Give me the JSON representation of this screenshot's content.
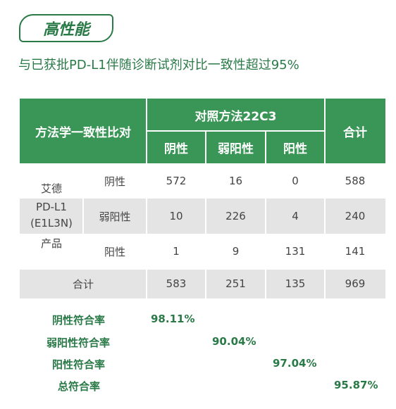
{
  "badge": {
    "label": "高性能"
  },
  "subtitle": "与已获批PD-L1伴随诊断试剂对比一致性超过95%",
  "table": {
    "corner": "方法学一致性比对",
    "reference_group": "对照方法22C3",
    "ref_cols": [
      "阴性",
      "弱阳性",
      "阳性"
    ],
    "total_col": "合计",
    "test_product": [
      "艾德",
      "PD-L1",
      "(E1L3N)",
      "产品"
    ],
    "rows": [
      {
        "label": "阴性",
        "values": [
          "572",
          "16",
          "0",
          "588"
        ]
      },
      {
        "label": "弱阳性",
        "values": [
          "10",
          "226",
          "4",
          "240"
        ]
      },
      {
        "label": "阳性",
        "values": [
          "1",
          "9",
          "131",
          "141"
        ]
      }
    ],
    "total_row": {
      "label": "合计",
      "values": [
        "583",
        "251",
        "135",
        "969"
      ]
    }
  },
  "rates": [
    {
      "label": "阴性符合率",
      "value": "98.11%"
    },
    {
      "label": "弱阳性符合率",
      "value": "90.04%"
    },
    {
      "label": "阳性符合率",
      "value": "97.04%"
    },
    {
      "label": "总符合率",
      "value": "95.87%"
    }
  ],
  "colors": {
    "brand_green": "#3a9656",
    "text_green": "#2a7a48",
    "row_gray": "#e4e4e4"
  }
}
